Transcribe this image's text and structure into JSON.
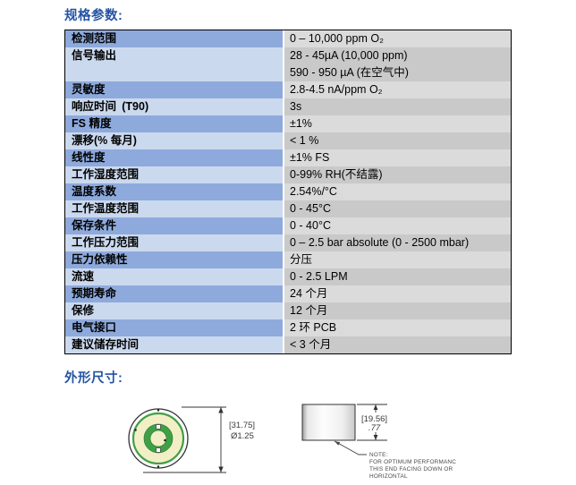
{
  "page": {
    "spec_heading": "规格参数:",
    "dims_heading": "外形尺寸:"
  },
  "colors": {
    "heading_blue": "#2353A5",
    "row_odd_label_bg": "#8EAADC",
    "row_even_label_bg": "#CBD9EE",
    "row_odd_value_bg": "#DBDBDB",
    "row_even_value_bg": "#C9C9C9",
    "drawing_green": "#3FA047",
    "drawing_yellow": "#F2EFC6"
  },
  "spec_table": {
    "rows": [
      {
        "label": "检测范围",
        "values": [
          "0 – 10,000 ppm O₂"
        ]
      },
      {
        "label": "信号输出",
        "values": [
          "28 - 45µA (10,000 ppm)",
          "590 - 950 µA (在空气中)"
        ]
      },
      {
        "label": "灵敏度",
        "values": [
          "2.8-4.5 nA/ppm O₂"
        ]
      },
      {
        "label": "响应时间 (T90)",
        "values": [
          "3s"
        ]
      },
      {
        "label": "FS 精度",
        "values": [
          "±1%"
        ]
      },
      {
        "label": "漂移(% 每月)",
        "values": [
          "< 1 %"
        ]
      },
      {
        "label": "线性度",
        "values": [
          "±1% FS"
        ]
      },
      {
        "label": "工作湿度范围",
        "values": [
          "0-99% RH(不结露)"
        ]
      },
      {
        "label": "温度系数",
        "values": [
          "2.54%/°C"
        ]
      },
      {
        "label": "工作温度范围",
        "values": [
          "0 - 45°C"
        ]
      },
      {
        "label": "保存条件",
        "values": [
          "0 - 40°C"
        ]
      },
      {
        "label": "工作压力范围",
        "values": [
          "0 – 2.5 bar absolute (0 - 2500 mbar)"
        ]
      },
      {
        "label": "压力依赖性",
        "values": [
          "分压"
        ]
      },
      {
        "label": "流速",
        "values": [
          "0 - 2.5 LPM"
        ]
      },
      {
        "label": "预期寿命",
        "values": [
          "24 个月"
        ]
      },
      {
        "label": "保修",
        "values": [
          "12 个月"
        ]
      },
      {
        "label": "电气接口",
        "values": [
          "2 环 PCB"
        ]
      },
      {
        "label": "建议储存时间",
        "values": [
          "< 3 个月"
        ]
      }
    ]
  },
  "drawing": {
    "diameter_dim_bracket": "[31.75]",
    "diameter_dim_value": "Ø1.25",
    "height_dim_bracket": "[19.56]",
    "height_dim_value": ".77",
    "note_lines": [
      "NOTE:",
      "FOR OPTIMUM PERFORMANC",
      "THIS END FACING DOWN OR",
      "HORIZONTAL"
    ]
  }
}
